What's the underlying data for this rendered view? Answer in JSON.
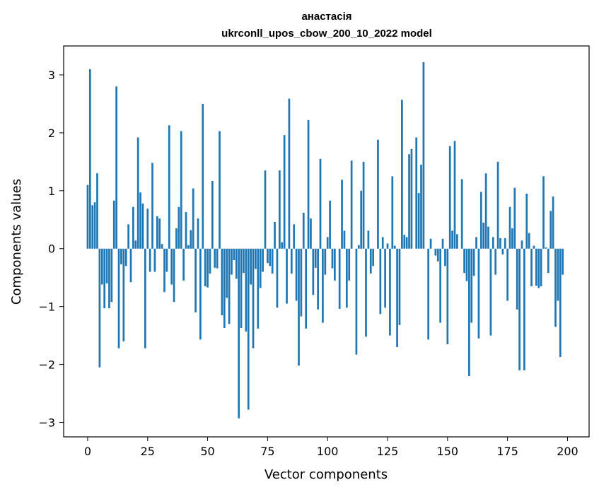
{
  "chart_data": {
    "type": "bar",
    "title_line1": "анастасія",
    "title_line2": "ukrconll_upos_cbow_200_10_2022 model",
    "xlabel": "Vector components",
    "ylabel": "Components values",
    "xlim": [
      -10,
      209
    ],
    "ylim": [
      -3.25,
      3.5
    ],
    "xticks": [
      0,
      25,
      50,
      75,
      100,
      125,
      150,
      175,
      200
    ],
    "yticks": [
      3,
      2,
      1,
      0,
      -1,
      -2,
      -3
    ],
    "ytick_labels": [
      "3",
      "2",
      "1",
      "0",
      "−1",
      "−2",
      "−3"
    ],
    "bar_color": "#1f77b4",
    "grid": false,
    "values": [
      1.1,
      3.1,
      0.75,
      0.8,
      1.3,
      -2.05,
      -0.62,
      -1.03,
      -0.6,
      -1.03,
      -0.92,
      0.83,
      2.8,
      -1.72,
      -0.27,
      -1.6,
      -0.3,
      0.42,
      -0.58,
      0.72,
      0.14,
      1.92,
      0.97,
      0.78,
      -1.72,
      0.69,
      -0.4,
      1.48,
      -0.4,
      0.56,
      0.52,
      0.08,
      -0.75,
      -0.4,
      2.13,
      -0.62,
      -0.92,
      0.35,
      0.72,
      2.03,
      -0.55,
      0.63,
      0.06,
      0.32,
      1.04,
      -1.1,
      0.52,
      -1.57,
      2.5,
      -0.65,
      -0.67,
      -0.43,
      1.17,
      -0.33,
      -0.34,
      2.03,
      -1.15,
      -1.37,
      -0.85,
      -1.3,
      -0.45,
      -0.2,
      -0.52,
      -2.93,
      -1.37,
      -0.42,
      -1.43,
      -2.78,
      -0.62,
      -1.72,
      -0.35,
      -1.38,
      -0.68,
      -0.4,
      1.35,
      -0.25,
      -0.3,
      -0.43,
      0.46,
      -1.02,
      1.35,
      0.11,
      1.96,
      -0.95,
      2.59,
      -0.43,
      0.42,
      -0.9,
      -2.02,
      -1.17,
      0.62,
      -1.38,
      2.22,
      0.52,
      -0.8,
      -0.33,
      -1.05,
      1.55,
      -1.28,
      -0.45,
      0.2,
      0.83,
      -0.34,
      -0.55,
      0.0,
      -1.04,
      1.19,
      0.31,
      -1.02,
      -0.55,
      1.52,
      0.0,
      -1.83,
      0.06,
      1.0,
      1.5,
      -1.52,
      0.31,
      -0.43,
      -0.3,
      0.0,
      1.88,
      -1.13,
      0.2,
      -1.02,
      0.09,
      -1.5,
      1.25,
      0.05,
      -1.7,
      -1.32,
      2.57,
      0.24,
      0.2,
      1.63,
      1.72,
      0.0,
      1.92,
      0.96,
      1.45,
      3.22,
      0.0,
      -1.57,
      0.17,
      0.0,
      -0.12,
      -0.22,
      -1.28,
      0.17,
      -0.3,
      -1.65,
      1.77,
      0.31,
      1.86,
      0.25,
      0.0,
      1.2,
      -0.42,
      -0.56,
      -2.2,
      -1.28,
      -0.47,
      0.2,
      -1.55,
      0.98,
      0.45,
      1.3,
      0.38,
      -1.5,
      0.2,
      -0.45,
      1.5,
      0.18,
      -0.1,
      0.18,
      -0.9,
      0.72,
      0.35,
      1.05,
      -1.05,
      -2.1,
      0.14,
      -2.1,
      0.95,
      0.27,
      -0.65,
      0.05,
      -0.64,
      -0.68,
      -0.65,
      1.25,
      0.02,
      -0.42,
      0.65,
      0.9,
      -1.35,
      -0.9,
      -1.87,
      -0.45
    ]
  }
}
